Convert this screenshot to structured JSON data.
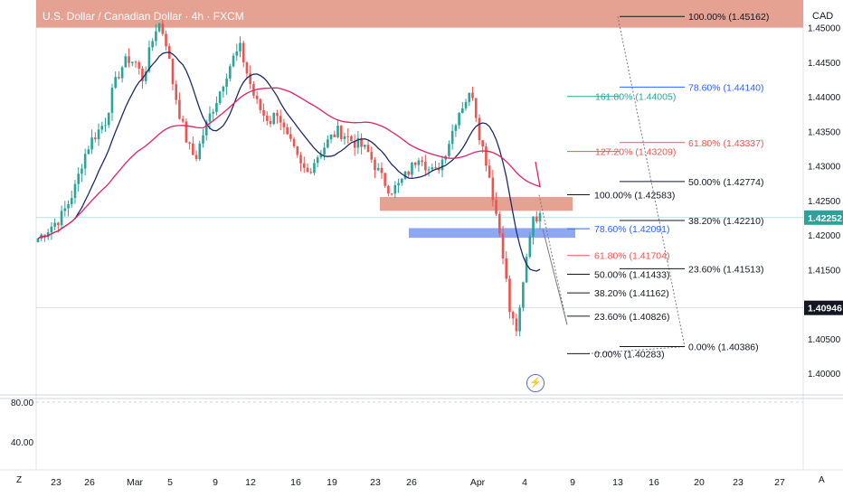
{
  "header": {
    "title": "U.S. Dollar / Canadian Dollar · 4h · FXCM",
    "currency": "CAD",
    "corner_left": "Z",
    "corner_right": "A"
  },
  "colors": {
    "up_candle": "#26a69a",
    "down_candle": "#ef5350",
    "ema_fast": "#1e2a6e",
    "ema_slow": "#e91e63",
    "supply_zone": "#e0917f",
    "demand_zone": "#7b98f0"
  },
  "chart_data": {
    "type": "candlestick",
    "symbol": "U.S. Dollar / Canadian Dollar",
    "timeframe": "4h",
    "x_tick_labels": [
      "23",
      "26",
      "Mar",
      "5",
      "9",
      "12",
      "16",
      "19",
      "23",
      "26",
      "Apr",
      "4",
      "9",
      "13",
      "16",
      "20",
      "23",
      "27"
    ],
    "y_tick_labels": [
      "1.45000",
      "1.44500",
      "1.44000",
      "1.43500",
      "1.43000",
      "1.42500",
      "1.42000",
      "1.41500",
      "1.41000",
      "1.40500",
      "1.40000"
    ],
    "ylim": [
      1.397,
      1.454
    ],
    "price_labels": [
      {
        "value": "1.42252",
        "bg": "#26a69a",
        "fg": "#ffffff",
        "y": 1.42252
      },
      {
        "value": "1.40946",
        "bg": "#131722",
        "fg": "#ffffff",
        "y": 1.40946
      }
    ],
    "oscillator_ticks": [
      "80.00",
      "40.00"
    ],
    "fib_big": [
      {
        "label": "100.00% (1.45162)",
        "value": 1.45162
      },
      {
        "label": "78.60% (1.44140)",
        "value": 1.4414
      },
      {
        "label": "61.80% (1.43337)",
        "value": 1.43337
      },
      {
        "label": "50.00% (1.42774)",
        "value": 1.42774
      },
      {
        "label": "38.20% (1.42210)",
        "value": 1.4221
      },
      {
        "label": "23.60% (1.41513)",
        "value": 1.41513
      },
      {
        "label": "0.00% (1.40386)",
        "value": 1.40386
      }
    ],
    "fib_ext": [
      {
        "label": "161.80% (1.44005)",
        "value": 1.44005
      },
      {
        "label": "127.20% (1.43209)",
        "value": 1.43209
      }
    ],
    "fib_small": [
      {
        "label": "100.00% (1.42583)",
        "value": 1.42583
      },
      {
        "label": "78.60% (1.42091)",
        "value": 1.42091
      },
      {
        "label": "61.80% (1.41704)",
        "value": 1.41704
      },
      {
        "label": "50.00% (1.41433)",
        "value": 1.41433
      },
      {
        "label": "38.20% (1.41162)",
        "value": 1.41162
      },
      {
        "label": "23.60% (1.40826)",
        "value": 1.40826
      },
      {
        "label": "0.00% (1.40283)",
        "value": 1.40283
      }
    ],
    "zones": [
      {
        "name": "supply",
        "top": 1.454,
        "bottom": 1.45
      },
      {
        "name": "resistance",
        "top": 1.4255,
        "bottom": 1.4235
      },
      {
        "name": "support",
        "top": 1.421,
        "bottom": 1.4196
      }
    ],
    "close_path": [
      1.4195,
      1.4205,
      1.4215,
      1.4225,
      1.4245,
      1.427,
      1.431,
      1.4335,
      1.435,
      1.4365,
      1.441,
      1.444,
      1.4455,
      1.445,
      1.4425,
      1.447,
      1.451,
      1.4485,
      1.442,
      1.437,
      1.433,
      1.431,
      1.4345,
      1.4375,
      1.44,
      1.443,
      1.4455,
      1.447,
      1.443,
      1.4395,
      1.4375,
      1.4365,
      1.438,
      1.4345,
      1.4325,
      1.43,
      1.429,
      1.431,
      1.4325,
      1.434,
      1.435,
      1.4345,
      1.4335,
      1.433,
      1.432,
      1.43,
      1.428,
      1.4265,
      1.427,
      1.4285,
      1.43,
      1.432,
      1.4295,
      1.429,
      1.431,
      1.434,
      1.4375,
      1.4395,
      1.4405,
      1.434,
      1.43,
      1.424,
      1.418,
      1.4085,
      1.406,
      1.415,
      1.423,
      1.4225
    ]
  }
}
